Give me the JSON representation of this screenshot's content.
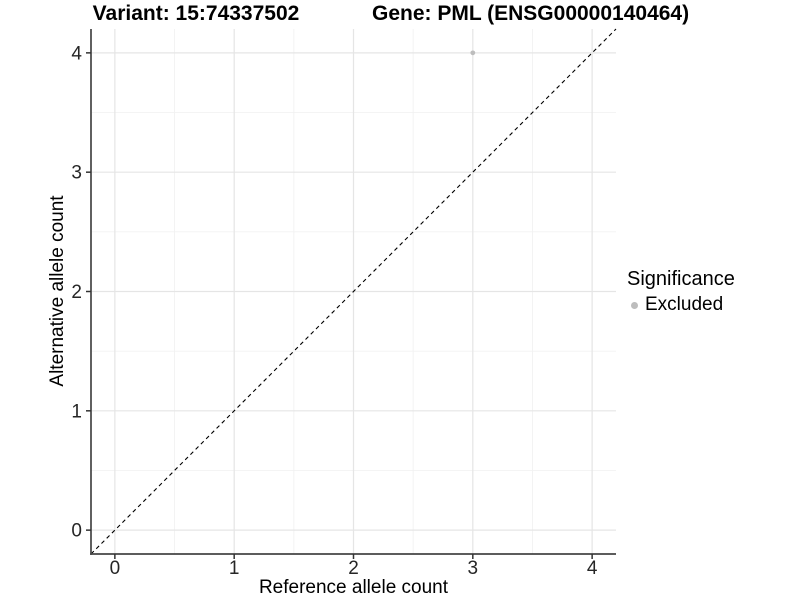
{
  "chart_data": {
    "type": "scatter",
    "title_left": "Variant: 15:74337502",
    "title_right": "Gene: PML (ENSG00000140464)",
    "xlabel": "Reference allele count",
    "ylabel": "Alternative allele count",
    "xlim": [
      -0.2,
      4.2
    ],
    "ylim": [
      -0.2,
      4.2
    ],
    "x_ticks": [
      0,
      1,
      2,
      3,
      4
    ],
    "y_ticks": [
      0,
      1,
      2,
      3,
      4
    ],
    "minor_gridlines_x": [
      0.5,
      1.5,
      2.5,
      3.5
    ],
    "minor_gridlines_y": [
      0.5,
      1.5,
      2.5,
      3.5
    ],
    "grid": true,
    "points": [
      {
        "x": 3,
        "y": 4,
        "series": "Excluded"
      }
    ],
    "reference_line": {
      "slope": 1,
      "intercept": 0,
      "linestyle": "dashed",
      "color": "#000000"
    },
    "legend": {
      "title": "Significance",
      "position": "right",
      "entries": [
        {
          "label": "Excluded",
          "color": "#bdbdbd"
        }
      ]
    },
    "colors": {
      "point": "#bdbdbd",
      "grid_major": "#e5e5e5",
      "grid_minor": "#f2f2f2",
      "axis_line": "#454545",
      "tick_mark": "#333333",
      "tick_label": "#262626",
      "background": "#ffffff"
    }
  }
}
